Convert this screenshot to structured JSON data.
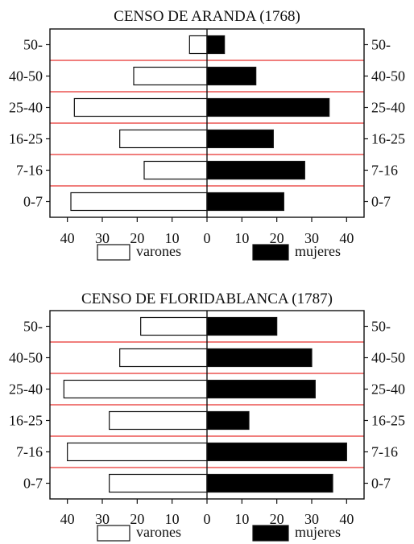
{
  "chart_data": [
    {
      "type": "bar",
      "title": "CENSO DE ARANDA (1768)",
      "categories": [
        "50-",
        "40-50",
        "25-40",
        "16-25",
        "7-16",
        "0-7"
      ],
      "series": [
        {
          "name": "varones",
          "values": [
            5,
            21,
            38,
            25,
            18,
            39
          ],
          "color": "#ffffff"
        },
        {
          "name": "mujeres",
          "values": [
            5,
            14,
            35,
            19,
            28,
            22
          ],
          "color": "#000000"
        }
      ],
      "xlim": [
        -45,
        45
      ],
      "xticks": [
        "40",
        "30",
        "20",
        "10",
        "0",
        "10",
        "20",
        "30",
        "40"
      ],
      "legend_position": "bottom",
      "separator_color": "#e8302e"
    },
    {
      "type": "bar",
      "title": "CENSO DE FLORIDABLANCA (1787)",
      "categories": [
        "50-",
        "40-50",
        "25-40",
        "16-25",
        "7-16",
        "0-7"
      ],
      "series": [
        {
          "name": "varones",
          "values": [
            19,
            25,
            41,
            28,
            40,
            28
          ],
          "color": "#ffffff"
        },
        {
          "name": "mujeres",
          "values": [
            20,
            30,
            31,
            12,
            40,
            36
          ],
          "color": "#000000"
        }
      ],
      "xlim": [
        -45,
        45
      ],
      "xticks": [
        "40",
        "30",
        "20",
        "10",
        "0",
        "10",
        "20",
        "30",
        "40"
      ],
      "legend_position": "bottom",
      "separator_color": "#e8302e"
    }
  ]
}
